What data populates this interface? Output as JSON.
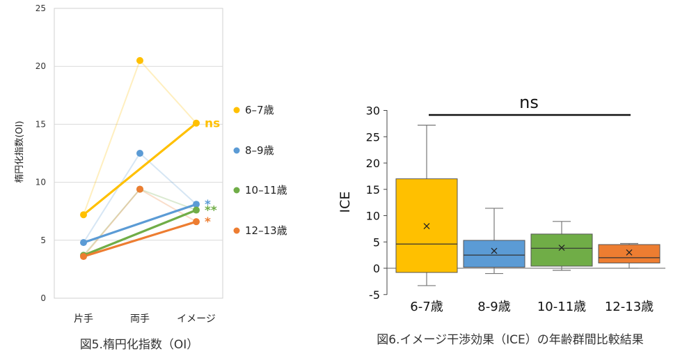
{
  "colors": {
    "series1": "#FFC000",
    "series2": "#5B9BD5",
    "series3": "#70AD47",
    "series4": "#ED7D31",
    "text": "#222222",
    "axis": "#444444",
    "grid": "#D9D9D9"
  },
  "chart_data": [
    {
      "type": "line",
      "caption": "図5.楕円化指数（OI）",
      "ylabel": "楕円化指数(OI)",
      "ylim": [
        0,
        25
      ],
      "yticks": [
        "0",
        "5",
        "10",
        "15",
        "20",
        "25"
      ],
      "categories": [
        "片手",
        "両手",
        "イメージ"
      ],
      "grid": true,
      "series": [
        {
          "name": "6–7歳",
          "values": [
            7.2,
            20.5,
            15.1
          ],
          "sig": "ns"
        },
        {
          "name": "8–9歳",
          "values": [
            4.8,
            12.5,
            8.1
          ],
          "sig": "*"
        },
        {
          "name": "10–11歳",
          "values": [
            3.7,
            9.4,
            7.6
          ],
          "sig": "**"
        },
        {
          "name": "12–13歳",
          "values": [
            3.6,
            9.4,
            6.6
          ],
          "sig": "*"
        }
      ]
    },
    {
      "type": "box",
      "caption": "図6.イメージ干渉効果（ICE）の年齢群間比較結果",
      "ylabel": "ICE",
      "ylim": [
        -5,
        30
      ],
      "yticks": [
        "-5",
        "0",
        "5",
        "10",
        "15",
        "20",
        "25",
        "30"
      ],
      "annotation": "ns",
      "categories": [
        "6-7歳",
        "8-9歳",
        "10-11歳",
        "12-13歳"
      ],
      "boxes": [
        {
          "min": -3.3,
          "q1": -0.8,
          "median": 4.6,
          "q3": 17.0,
          "max": 27.2,
          "mean": 8.0
        },
        {
          "min": -1.0,
          "q1": 0.2,
          "median": 2.5,
          "q3": 5.3,
          "max": 11.4,
          "mean": 3.3
        },
        {
          "min": -0.4,
          "q1": 0.4,
          "median": 3.8,
          "q3": 6.5,
          "max": 8.9,
          "mean": 3.9
        },
        {
          "min": 0.0,
          "q1": 1.0,
          "median": 2.0,
          "q3": 4.5,
          "max": 4.7,
          "mean": 3.0
        }
      ]
    }
  ]
}
